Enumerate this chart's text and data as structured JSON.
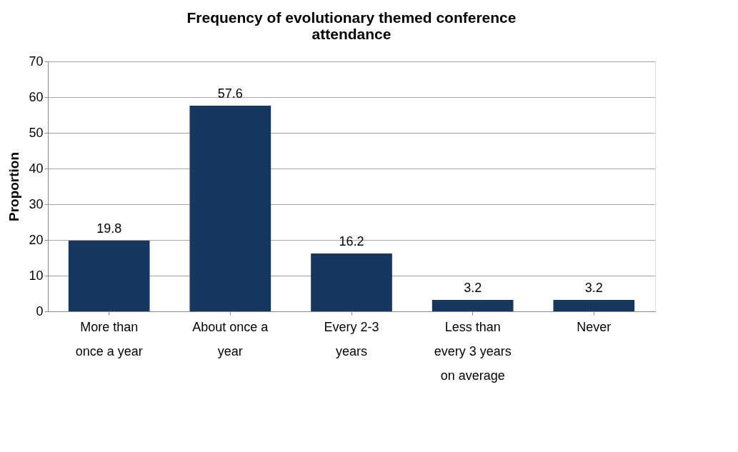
{
  "chart_data": {
    "type": "bar",
    "title": "Frequency of evolutionary themed conference attendance",
    "ylabel": "Proportion",
    "categories": [
      "More than once a year",
      "About once a year",
      "Every 2-3 years",
      "Less than every 3 years on average",
      "Never"
    ],
    "values": [
      19.8,
      57.6,
      16.2,
      3.2,
      3.2
    ],
    "color": "#17375e",
    "ylim": [
      0,
      70
    ],
    "yticks": [
      0,
      10,
      20,
      30,
      40,
      50,
      60,
      70
    ],
    "grid": "y",
    "data_labels": true
  }
}
